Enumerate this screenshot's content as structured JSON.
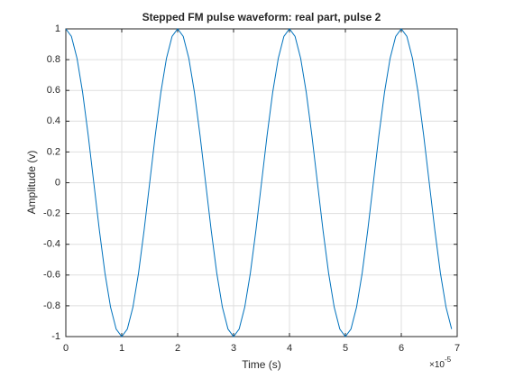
{
  "chart_data": {
    "type": "line",
    "title": "Stepped FM pulse waveform: real part, pulse 2",
    "xlabel": "Time (s)",
    "ylabel": "Amplitude (v)",
    "x_exponent": {
      "base": "×10",
      "power": "-5"
    },
    "color": "#0072bd",
    "grid": true,
    "x": [
      0,
      0.1,
      0.2,
      0.3,
      0.4,
      0.5,
      0.6,
      0.7,
      0.8,
      0.9,
      1,
      1.1,
      1.2,
      1.3,
      1.4,
      1.5,
      1.6,
      1.7,
      1.8,
      1.9,
      2,
      2.1,
      2.2,
      2.3,
      2.4,
      2.5,
      2.6,
      2.7,
      2.8,
      2.9,
      3,
      3.1,
      3.2,
      3.3,
      3.4,
      3.5,
      3.6,
      3.7,
      3.8,
      3.9,
      4,
      4.1,
      4.2,
      4.3,
      4.4,
      4.5,
      4.6,
      4.7,
      4.8,
      4.9,
      5,
      5.1,
      5.2,
      5.3,
      5.4,
      5.5,
      5.6,
      5.7,
      5.8,
      5.9,
      6,
      6.1,
      6.2,
      6.3,
      6.4,
      6.5,
      6.6,
      6.7,
      6.8,
      6.9
    ],
    "values": [
      1,
      0.951,
      0.809,
      0.588,
      0.309,
      0,
      -0.309,
      -0.588,
      -0.809,
      -0.951,
      -1,
      -0.951,
      -0.809,
      -0.588,
      -0.309,
      0,
      0.309,
      0.588,
      0.809,
      0.951,
      1,
      0.951,
      0.809,
      0.588,
      0.309,
      0,
      -0.309,
      -0.588,
      -0.809,
      -0.951,
      -1,
      -0.951,
      -0.809,
      -0.588,
      -0.309,
      0,
      0.309,
      0.588,
      0.809,
      0.951,
      1,
      0.951,
      0.809,
      0.588,
      0.309,
      0,
      -0.309,
      -0.588,
      -0.809,
      -0.951,
      -1,
      -0.951,
      -0.809,
      -0.588,
      -0.309,
      0,
      0.309,
      0.588,
      0.809,
      0.951,
      1,
      0.951,
      0.809,
      0.588,
      0.309,
      0,
      -0.309,
      -0.588,
      -0.809,
      -0.951
    ],
    "xlim": [
      0,
      7
    ],
    "xticks": [
      0,
      1,
      2,
      3,
      4,
      5,
      6,
      7
    ],
    "ylim": [
      -1,
      1
    ],
    "yticks": [
      -1,
      -0.8,
      -0.6,
      -0.4,
      -0.2,
      0,
      0.2,
      0.4,
      0.6,
      0.8,
      1
    ]
  }
}
